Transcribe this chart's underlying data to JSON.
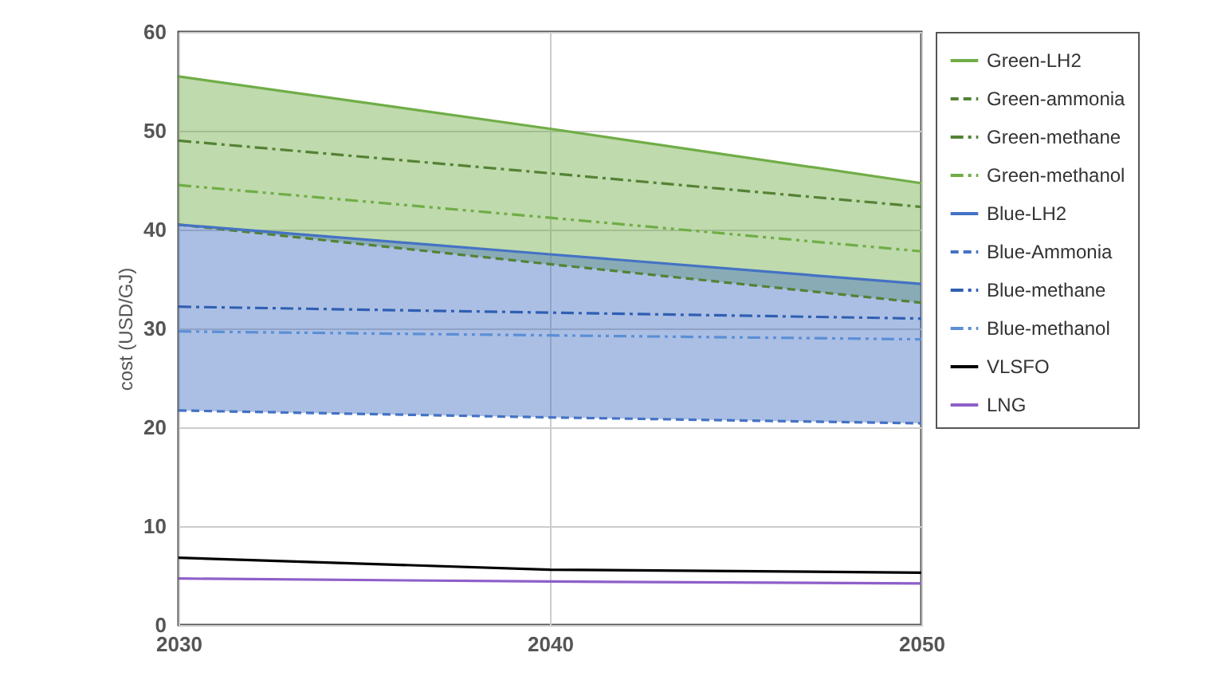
{
  "chart_data": {
    "type": "line",
    "ylabel": "cost (USD/GJ)",
    "x": [
      2030,
      2040,
      2050
    ],
    "series": [
      {
        "name": "Green-LH2",
        "color": "#70ad47",
        "line_style": "solid",
        "values": [
          55.5,
          50.2,
          44.7
        ],
        "lower": [
          40.5,
          36.5,
          32.6
        ],
        "upper": [
          55.5,
          50.2,
          44.7
        ]
      },
      {
        "name": "Green-ammonia",
        "color": "#548235",
        "line_style": "dashed",
        "values": [
          40.5,
          36.5,
          32.6
        ]
      },
      {
        "name": "Green-methane",
        "color": "#548235",
        "line_style": "dashdot",
        "values": [
          49.0,
          45.7,
          42.3
        ]
      },
      {
        "name": "Green-methanol",
        "color": "#70ad47",
        "line_style": "dashdotdot",
        "values": [
          44.5,
          41.2,
          37.8
        ]
      },
      {
        "name": "Blue-LH2",
        "color": "#4472c4",
        "line_style": "solid",
        "values": [
          40.5,
          37.5,
          34.5
        ],
        "lower": [
          21.7,
          21.0,
          20.4
        ],
        "upper": [
          40.5,
          37.5,
          34.5
        ]
      },
      {
        "name": "Blue-Ammonia",
        "color": "#4472c4",
        "line_style": "dashed",
        "values": [
          21.7,
          21.0,
          20.4
        ]
      },
      {
        "name": "Blue-methane",
        "color": "#2f5fb3",
        "line_style": "dashdot",
        "values": [
          32.2,
          31.6,
          31.0
        ]
      },
      {
        "name": "Blue-methanol",
        "color": "#5b8fd6",
        "line_style": "dashdotdot",
        "values": [
          29.7,
          29.3,
          28.9
        ]
      },
      {
        "name": "VLSFO",
        "color": "#000000",
        "line_style": "solid",
        "values": [
          6.8,
          5.6,
          5.3
        ]
      },
      {
        "name": "LNG",
        "color": "#8e5fc9",
        "line_style": "solid",
        "values": [
          4.7,
          4.4,
          4.2
        ]
      }
    ],
    "xlim": [
      2030,
      2050
    ],
    "xticks": [
      2030,
      2040,
      2050
    ],
    "ylim": [
      0,
      60
    ],
    "yticks": [
      0,
      10,
      20,
      30,
      40,
      50,
      60
    ],
    "grid": true,
    "legend": "right"
  }
}
